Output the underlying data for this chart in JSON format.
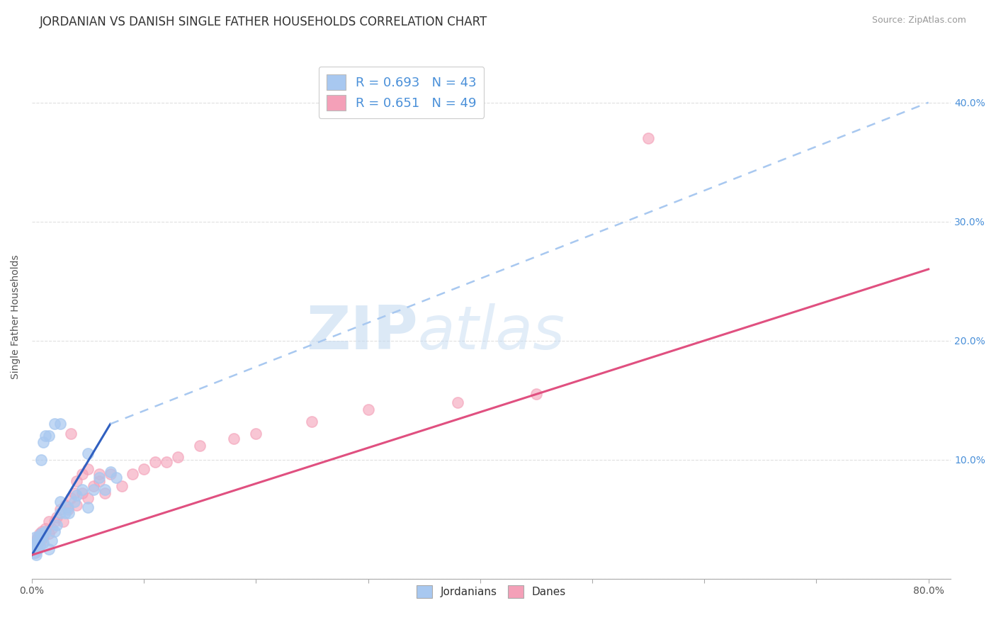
{
  "title": "JORDANIAN VS DANISH SINGLE FATHER HOUSEHOLDS CORRELATION CHART",
  "source": "Source: ZipAtlas.com",
  "ylabel": "Single Father Households",
  "xlabel_jordanians": "Jordanians",
  "xlabel_danes": "Danes",
  "watermark_zip": "ZIP",
  "watermark_atlas": "atlas",
  "legend_r1": "R = 0.693",
  "legend_n1": "N = 43",
  "legend_r2": "R = 0.651",
  "legend_n2": "N = 49",
  "jordan_color": "#a8c8f0",
  "danish_color": "#f4a0b8",
  "jordan_line_color": "#3060c0",
  "jordan_line_color2": "#a8c8f0",
  "danish_line_color": "#e05080",
  "jordan_scatter": [
    [
      0.001,
      0.025
    ],
    [
      0.002,
      0.028
    ],
    [
      0.002,
      0.022
    ],
    [
      0.003,
      0.03
    ],
    [
      0.003,
      0.035
    ],
    [
      0.004,
      0.028
    ],
    [
      0.004,
      0.02
    ],
    [
      0.005,
      0.025
    ],
    [
      0.005,
      0.03
    ],
    [
      0.006,
      0.03
    ],
    [
      0.006,
      0.035
    ],
    [
      0.007,
      0.028
    ],
    [
      0.007,
      0.032
    ],
    [
      0.008,
      0.035
    ],
    [
      0.008,
      0.038
    ],
    [
      0.01,
      0.03
    ],
    [
      0.01,
      0.038
    ],
    [
      0.012,
      0.04
    ],
    [
      0.015,
      0.025
    ],
    [
      0.018,
      0.032
    ],
    [
      0.02,
      0.04
    ],
    [
      0.022,
      0.045
    ],
    [
      0.025,
      0.065
    ],
    [
      0.025,
      0.055
    ],
    [
      0.03,
      0.055
    ],
    [
      0.032,
      0.06
    ],
    [
      0.033,
      0.055
    ],
    [
      0.038,
      0.065
    ],
    [
      0.04,
      0.07
    ],
    [
      0.045,
      0.075
    ],
    [
      0.05,
      0.06
    ],
    [
      0.055,
      0.075
    ],
    [
      0.06,
      0.085
    ],
    [
      0.065,
      0.075
    ],
    [
      0.07,
      0.09
    ],
    [
      0.075,
      0.085
    ],
    [
      0.008,
      0.1
    ],
    [
      0.01,
      0.115
    ],
    [
      0.012,
      0.12
    ],
    [
      0.015,
      0.12
    ],
    [
      0.02,
      0.13
    ],
    [
      0.025,
      0.13
    ],
    [
      0.05,
      0.105
    ]
  ],
  "danish_scatter": [
    [
      0.001,
      0.025
    ],
    [
      0.002,
      0.028
    ],
    [
      0.003,
      0.022
    ],
    [
      0.004,
      0.032
    ],
    [
      0.005,
      0.025
    ],
    [
      0.005,
      0.035
    ],
    [
      0.006,
      0.03
    ],
    [
      0.007,
      0.038
    ],
    [
      0.008,
      0.032
    ],
    [
      0.009,
      0.04
    ],
    [
      0.01,
      0.035
    ],
    [
      0.012,
      0.042
    ],
    [
      0.015,
      0.038
    ],
    [
      0.015,
      0.048
    ],
    [
      0.018,
      0.042
    ],
    [
      0.02,
      0.048
    ],
    [
      0.022,
      0.052
    ],
    [
      0.025,
      0.058
    ],
    [
      0.028,
      0.048
    ],
    [
      0.03,
      0.062
    ],
    [
      0.032,
      0.058
    ],
    [
      0.035,
      0.068
    ],
    [
      0.038,
      0.072
    ],
    [
      0.04,
      0.062
    ],
    [
      0.045,
      0.072
    ],
    [
      0.05,
      0.068
    ],
    [
      0.055,
      0.078
    ],
    [
      0.06,
      0.082
    ],
    [
      0.065,
      0.072
    ],
    [
      0.07,
      0.088
    ],
    [
      0.08,
      0.078
    ],
    [
      0.09,
      0.088
    ],
    [
      0.1,
      0.092
    ],
    [
      0.11,
      0.098
    ],
    [
      0.12,
      0.098
    ],
    [
      0.13,
      0.102
    ],
    [
      0.15,
      0.112
    ],
    [
      0.18,
      0.118
    ],
    [
      0.2,
      0.122
    ],
    [
      0.25,
      0.132
    ],
    [
      0.3,
      0.142
    ],
    [
      0.035,
      0.122
    ],
    [
      0.04,
      0.082
    ],
    [
      0.045,
      0.088
    ],
    [
      0.05,
      0.092
    ],
    [
      0.06,
      0.088
    ],
    [
      0.55,
      0.37
    ],
    [
      0.45,
      0.155
    ],
    [
      0.38,
      0.148
    ]
  ],
  "xlim": [
    0.0,
    0.82
  ],
  "ylim": [
    0.0,
    0.44
  ],
  "xtick_positions": [
    0.0,
    0.1,
    0.2,
    0.3,
    0.4,
    0.5,
    0.6,
    0.7,
    0.8
  ],
  "ytick_positions": [
    0.0,
    0.1,
    0.2,
    0.3,
    0.4
  ],
  "jordan_line_solid": [
    [
      0.0,
      0.02
    ],
    [
      0.07,
      0.13
    ]
  ],
  "jordan_line_dashed": [
    [
      0.07,
      0.13
    ],
    [
      0.8,
      0.4
    ]
  ],
  "danish_line": [
    [
      0.0,
      0.02
    ],
    [
      0.8,
      0.26
    ]
  ],
  "background_color": "#ffffff",
  "grid_color": "#d8d8d8",
  "title_fontsize": 12,
  "axis_label_fontsize": 10,
  "tick_fontsize": 10,
  "legend_fontsize": 13,
  "watermark_fontsize_zip": 62,
  "watermark_fontsize_atlas": 62
}
